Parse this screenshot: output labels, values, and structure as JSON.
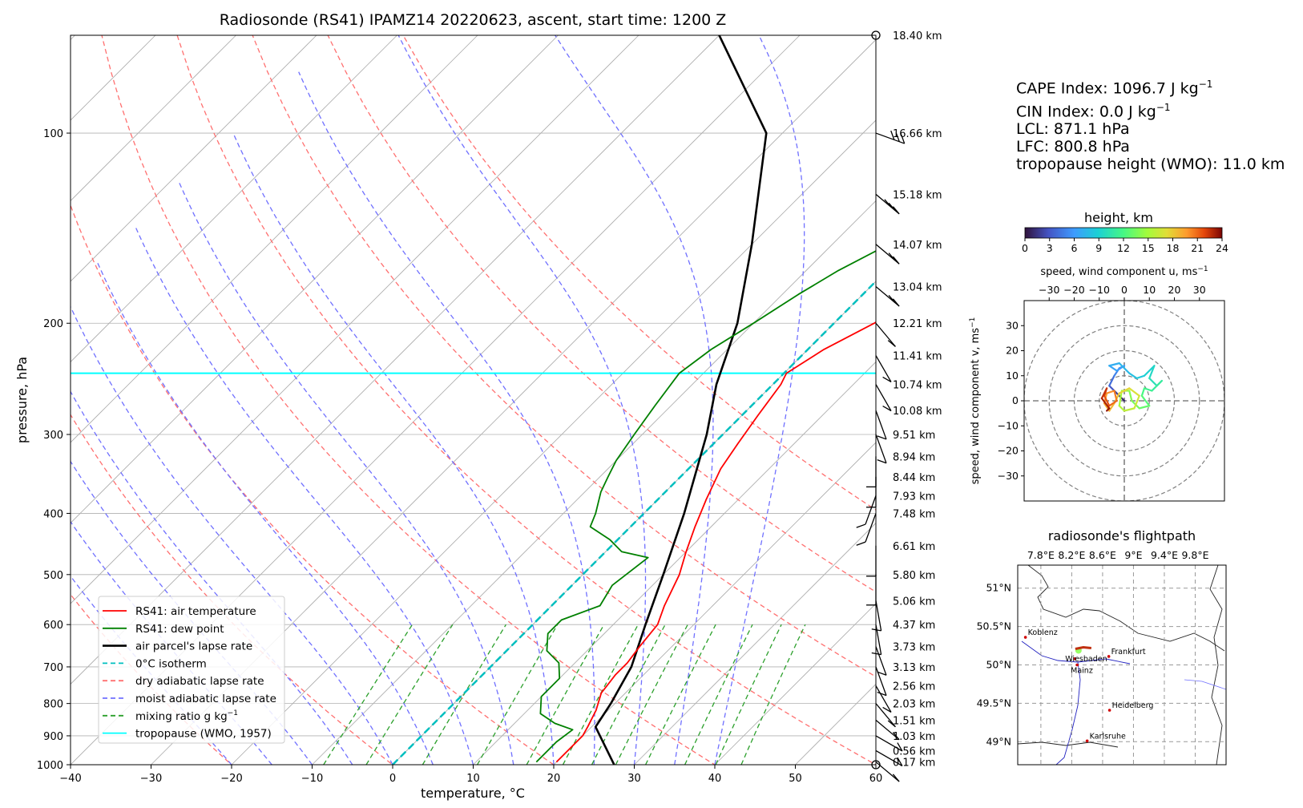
{
  "chart_data": [
    {
      "type": "line",
      "subtype": "skew-t log-p diagram",
      "title": "Radiosonde (RS41) IPAMZ14 20220623, ascent, start time: 1200 Z",
      "xlabel": "temperature, °C",
      "ylabel": "pressure, hPa",
      "xlim": [
        -40,
        60
      ],
      "ylim": [
        1000,
        70
      ],
      "y_scale": "log",
      "x_ticks": [
        "−40",
        "−30",
        "−20",
        "−10",
        "0",
        "10",
        "20",
        "30",
        "40",
        "50",
        "60"
      ],
      "y_ticks": [
        "100",
        "200",
        "300",
        "400",
        "500",
        "600",
        "700",
        "800",
        "900",
        "1000"
      ],
      "grid": true,
      "legend_position": "lower-left",
      "legend": [
        {
          "label": "RS41: air temperature",
          "color": "#ff0000",
          "style": "solid"
        },
        {
          "label": "RS41: dew point",
          "color": "#008000",
          "style": "solid"
        },
        {
          "label": "air parcel's lapse rate",
          "color": "#000000",
          "style": "solid"
        },
        {
          "label": "0°C isotherm",
          "color": "#00bfbf",
          "style": "dashed"
        },
        {
          "label": "dry adiabatic lapse rate",
          "color": "#ff7070",
          "style": "dashed"
        },
        {
          "label": "moist adiabatic lapse rate",
          "color": "#7070ff",
          "style": "dashed"
        },
        {
          "label": "mixing ratio g kg",
          "label_sup": "−1",
          "color": "#2ca02c",
          "style": "dashed"
        },
        {
          "label": "tropopause (WMO, 1957)",
          "color": "#00ffff",
          "style": "solid"
        }
      ],
      "series": [
        {
          "name": "RS41: air temperature",
          "color": "#ff0000",
          "points": [
            [
              20,
              990
            ],
            [
              20,
              900
            ],
            [
              19.5,
              870
            ],
            [
              18.5,
              820
            ],
            [
              17,
              770
            ],
            [
              16.5,
              720
            ],
            [
              16.5,
              690
            ],
            [
              16,
              650
            ],
            [
              15.5,
              600
            ],
            [
              14,
              560
            ],
            [
              12,
              500
            ],
            [
              10,
              460
            ],
            [
              8,
              420
            ],
            [
              6,
              380
            ],
            [
              4,
              340
            ],
            [
              3,
              310
            ],
            [
              2,
              280
            ],
            [
              1,
              250
            ],
            [
              0.3,
              240
            ],
            [
              2,
              220
            ],
            [
              5,
              200
            ],
            [
              7,
              180
            ],
            [
              8,
              165
            ],
            [
              10,
              150
            ],
            [
              12,
              135
            ],
            [
              14,
              120
            ],
            [
              17,
              110
            ],
            [
              19,
              100
            ],
            [
              22,
              92
            ],
            [
              25,
              85
            ],
            [
              29,
              78
            ],
            [
              32,
              73
            ]
          ]
        },
        {
          "name": "RS41: dew point",
          "color": "#008000",
          "points": [
            [
              17.5,
              990
            ],
            [
              17.5,
              920
            ],
            [
              18,
              880
            ],
            [
              15,
              860
            ],
            [
              12,
              830
            ],
            [
              10,
              780
            ],
            [
              10,
              730
            ],
            [
              8,
              690
            ],
            [
              5,
              660
            ],
            [
              3,
              620
            ],
            [
              3,
              590
            ],
            [
              6,
              560
            ],
            [
              5,
              520
            ],
            [
              6,
              470
            ],
            [
              2,
              460
            ],
            [
              -1,
              440
            ],
            [
              -5,
              420
            ],
            [
              -6,
              400
            ],
            [
              -8,
              370
            ],
            [
              -9,
              350
            ],
            [
              -10,
              330
            ],
            [
              -11,
              300
            ],
            [
              -12,
              270
            ],
            [
              -13,
              240
            ],
            [
              -12,
              220
            ],
            [
              -10,
              200
            ],
            [
              -8,
              180
            ],
            [
              -6,
              165
            ],
            [
              -3,
              150
            ],
            [
              -1,
              135
            ],
            [
              2,
              120
            ],
            [
              4,
              110
            ],
            [
              6,
              100
            ],
            [
              8,
              90
            ],
            [
              10,
              82
            ],
            [
              12,
              74
            ]
          ]
        },
        {
          "name": "air parcel's lapse rate",
          "color": "#000000",
          "points": [
            [
              27.5,
              1000
            ],
            [
              20.5,
              871.1
            ],
            [
              19.5,
              800
            ],
            [
              17.5,
              700
            ],
            [
              14,
              600
            ],
            [
              10,
              500
            ],
            [
              5,
              400
            ],
            [
              -2,
              300
            ],
            [
              -7,
              250
            ],
            [
              -12,
              200
            ],
            [
              -20,
              150
            ],
            [
              -32,
              100
            ],
            [
              -50,
              70
            ]
          ]
        }
      ],
      "tropopause_pressure": 240,
      "right_axis_labels": [
        "18.40 km",
        "16.66 km",
        "15.18 km",
        "14.07 km",
        "13.04 km",
        "12.21 km",
        "11.41 km",
        "10.74 km",
        "10.08 km",
        "9.51 km",
        "8.94 km",
        "8.44 km",
        "7.93 km",
        "7.48 km",
        "6.61 km",
        "5.80 km",
        "5.06 km",
        "4.37 km",
        "3.73 km",
        "3.13 km",
        "2.56 km",
        "2.03 km",
        "1.51 km",
        "1.03 km",
        "0.56 km",
        "0.17 km"
      ],
      "right_axis_pressures": [
        70,
        100,
        125,
        150,
        175,
        200,
        225,
        250,
        275,
        300,
        325,
        350,
        375,
        400,
        450,
        500,
        550,
        600,
        650,
        700,
        750,
        800,
        850,
        900,
        950,
        990
      ],
      "wind_barbs": [
        [
          100,
          25,
          250
        ],
        [
          125,
          20,
          230
        ],
        [
          150,
          15,
          230
        ],
        [
          175,
          12,
          230
        ],
        [
          200,
          10,
          220
        ],
        [
          225,
          8,
          210
        ],
        [
          250,
          8,
          210
        ],
        [
          275,
          8,
          200
        ],
        [
          300,
          8,
          200
        ],
        [
          325,
          6,
          180
        ],
        [
          350,
          6,
          180
        ],
        [
          375,
          5,
          160
        ],
        [
          400,
          5,
          160
        ],
        [
          450,
          5,
          180
        ],
        [
          500,
          4,
          180
        ],
        [
          550,
          4,
          190
        ],
        [
          600,
          4,
          190
        ],
        [
          650,
          3,
          200
        ],
        [
          700,
          3,
          200
        ],
        [
          750,
          3,
          210
        ],
        [
          800,
          3,
          220
        ],
        [
          850,
          4,
          230
        ],
        [
          900,
          4,
          240
        ],
        [
          950,
          3,
          240
        ],
        [
          990,
          2,
          230
        ]
      ]
    },
    {
      "type": "line",
      "subtype": "hodograph",
      "title": "speed, wind component u, ms",
      "title_sup": "−1",
      "ylabel": "speed, wind component v, ms",
      "ylabel_sup": "−1",
      "xlim": [
        -40,
        40
      ],
      "ylim": [
        -40,
        40
      ],
      "x_ticks": [
        "−30",
        "−20",
        "−10",
        "0",
        "10",
        "20",
        "30"
      ],
      "y_ticks": [
        "30",
        "20",
        "10",
        "0",
        "−10",
        "−20",
        "−30"
      ],
      "x_tick_values": [
        -30,
        -20,
        -10,
        0,
        10,
        20,
        30
      ],
      "y_tick_values": [
        30,
        20,
        10,
        0,
        -10,
        -20,
        -30
      ],
      "rings": [
        10,
        20,
        30,
        40
      ],
      "colorbar": {
        "label": "height, km",
        "ticks": [
          "0",
          "3",
          "6",
          "9",
          "12",
          "15",
          "18",
          "21",
          "24"
        ],
        "range": [
          0,
          24
        ],
        "colormap": "turbo"
      },
      "points_uv_height": [
        [
          0,
          0,
          0.2
        ],
        [
          -2,
          2,
          1
        ],
        [
          -4,
          4,
          2
        ],
        [
          -6,
          6,
          3
        ],
        [
          -4,
          10,
          4
        ],
        [
          -2,
          13,
          5
        ],
        [
          0,
          14,
          5.5
        ],
        [
          -3,
          12,
          6
        ],
        [
          -6,
          14,
          6.5
        ],
        [
          -2,
          15,
          7
        ],
        [
          2,
          11,
          7.5
        ],
        [
          5,
          9,
          8
        ],
        [
          8,
          10,
          8.5
        ],
        [
          12,
          14,
          9
        ],
        [
          10,
          9,
          9.5
        ],
        [
          13,
          6,
          10
        ],
        [
          15,
          8,
          10.5
        ],
        [
          11,
          4,
          11
        ],
        [
          8,
          5,
          11.5
        ],
        [
          7,
          2,
          12
        ],
        [
          10,
          -2,
          12.5
        ],
        [
          6,
          -3,
          13
        ],
        [
          3,
          0,
          13.5
        ],
        [
          2,
          4,
          14
        ],
        [
          -1,
          4,
          14.5
        ],
        [
          -2,
          -2,
          15
        ],
        [
          0,
          -4,
          15.5
        ],
        [
          4,
          -3,
          16
        ],
        [
          6,
          2,
          16.5
        ],
        [
          2,
          5,
          17
        ],
        [
          -2,
          3,
          17.5
        ],
        [
          -4,
          -1,
          18
        ],
        [
          -6,
          -4,
          18.5
        ],
        [
          -8,
          -1,
          19
        ],
        [
          -7,
          3,
          19.5
        ],
        [
          -4,
          4,
          20
        ],
        [
          -3,
          0,
          20.5
        ],
        [
          -6,
          -2,
          21
        ],
        [
          -8,
          2,
          21.5
        ],
        [
          -7,
          5,
          22
        ],
        [
          -9,
          1,
          22.5
        ],
        [
          -6,
          -3,
          23
        ],
        [
          -7,
          -4,
          23.5
        ]
      ]
    },
    {
      "type": "scatter",
      "subtype": "map",
      "title": "radiosonde's flightpath",
      "lon_ticks": [
        "7.8°E",
        "8.2°E",
        "8.6°E",
        "9°E",
        "9.4°E",
        "9.8°E"
      ],
      "lat_ticks": [
        "51°N",
        "50.5°N",
        "50°N",
        "49.5°N",
        "49°N"
      ],
      "lon_tick_values": [
        7.8,
        8.2,
        8.6,
        9.0,
        9.4,
        9.8
      ],
      "lat_tick_values": [
        51,
        50.5,
        50,
        49.5,
        49
      ],
      "xlim": [
        7.5,
        10.2
      ],
      "ylim": [
        48.7,
        51.3
      ],
      "cities": [
        {
          "name": "Koblenz",
          "lon": 7.6,
          "lat": 50.36
        },
        {
          "name": "Wiesbaden",
          "lon": 8.24,
          "lat": 50.08
        },
        {
          "name": "Mainz",
          "lon": 8.27,
          "lat": 50.0
        },
        {
          "name": "Frankfurt",
          "lon": 8.68,
          "lat": 50.11
        },
        {
          "name": "Heidelberg",
          "lon": 8.69,
          "lat": 49.41
        },
        {
          "name": "Karlsruhe",
          "lon": 8.4,
          "lat": 49.01
        }
      ]
    }
  ],
  "stats": {
    "cape": "CAPE Index: 1096.7 J kg",
    "cape_sup": "−1",
    "cin": "CIN Index: 0.0 J kg",
    "cin_sup": "−1",
    "lcl": "LCL: 871.1 hPa",
    "lfc": "LFC: 800.8 hPa",
    "tropopause": "tropopause height (WMO): 11.0 km"
  },
  "colors": {
    "temperature": "#ff0000",
    "dewpoint": "#008000",
    "parcel": "#000000",
    "isotherm0": "#00bfbf",
    "dry_adiabat": "#ff7070",
    "moist_adiabat": "#7070ff",
    "mixing_ratio": "#2ca02c",
    "tropopause": "#00ffff",
    "isotherm_grid": "#aaaaaa"
  }
}
